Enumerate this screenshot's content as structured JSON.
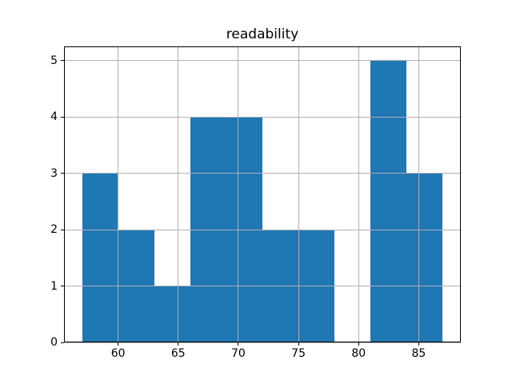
{
  "chart_data": {
    "type": "bar",
    "subtype": "histogram",
    "title": "readability",
    "xlabel": "",
    "ylabel": "",
    "bin_edges": [
      57,
      60,
      63,
      66,
      69,
      72,
      75,
      78,
      81,
      84,
      87
    ],
    "counts": [
      3,
      2,
      1,
      4,
      4,
      2,
      2,
      0,
      5,
      3
    ],
    "xlim": [
      55.5,
      88.5
    ],
    "ylim": [
      0,
      5.25
    ],
    "x_ticks": [
      60,
      65,
      70,
      75,
      80,
      85
    ],
    "y_ticks": [
      0,
      1,
      2,
      3,
      4,
      5
    ],
    "bar_color": "#1f77b4",
    "grid_color": "#b0b0b0",
    "axis_color": "#000000",
    "grid": true,
    "grid_above_bars": true,
    "legend": "none"
  }
}
